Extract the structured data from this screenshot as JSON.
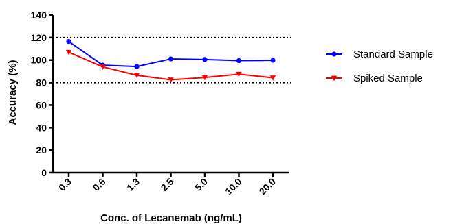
{
  "chart_data": {
    "type": "line",
    "categories": [
      "0.3",
      "0.6",
      "1.3",
      "2.5",
      "5.0",
      "10.0",
      "20.0"
    ],
    "xlabel": "Conc. of Lecanemab (ng/mL)",
    "ylabel": "Accuracy (%)",
    "ylim": [
      0,
      140
    ],
    "yticks": [
      "0",
      "20",
      "40",
      "60",
      "80",
      "100",
      "120",
      "140"
    ],
    "reference_lines": [
      80,
      120
    ],
    "grid": false,
    "legend_position": "right",
    "series": [
      {
        "name": "Standard Sample",
        "color": "#0000ff",
        "marker": "circle",
        "values": [
          116.5,
          95.5,
          94.3,
          101.0,
          100.5,
          99.5,
          99.8
        ]
      },
      {
        "name": "Spiked Sample",
        "color": "#ff0000",
        "marker": "triangle-down",
        "values": [
          107.0,
          94.0,
          86.5,
          82.5,
          84.5,
          87.5,
          84.3
        ]
      }
    ]
  }
}
